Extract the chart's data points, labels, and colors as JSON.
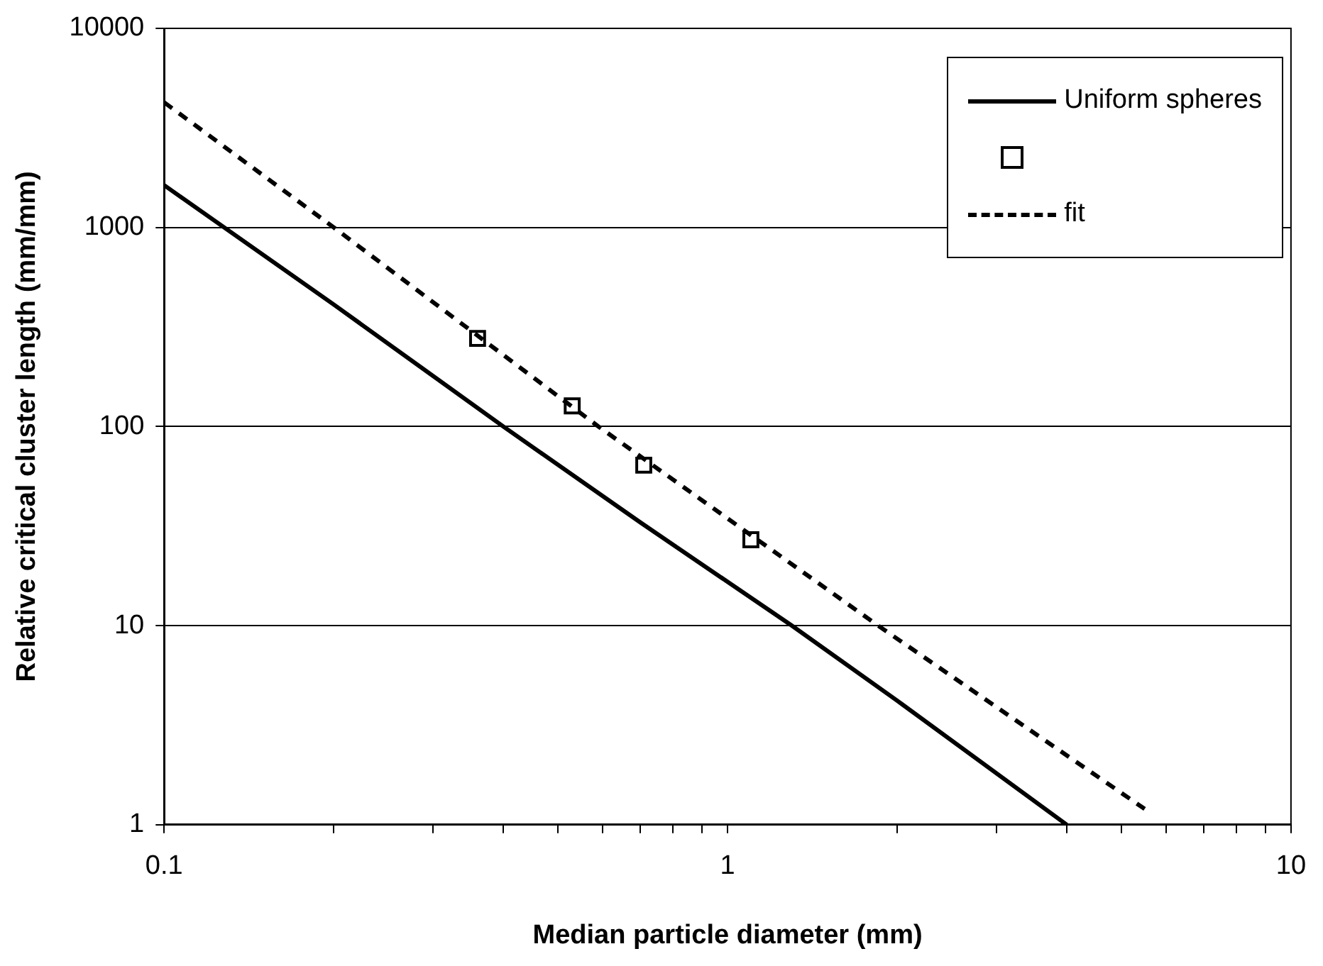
{
  "chart_data": {
    "type": "line",
    "xlabel": "Median particle diameter (mm)",
    "ylabel": "Relative critical cluster length (mm/mm)",
    "log": "xy",
    "grid": "y",
    "legend": "top right",
    "xlim": [
      0.1,
      10
    ],
    "ylim": [
      1,
      10000
    ],
    "xticks": [
      0.1,
      {
        "value": 0.2,
        "label": null
      },
      {
        "value": 0.3,
        "label": null
      },
      {
        "value": 0.4,
        "label": null
      },
      {
        "value": 0.5,
        "label": null
      },
      {
        "value": 0.6,
        "label": null
      },
      {
        "value": 0.7,
        "label": null
      },
      {
        "value": 0.8,
        "label": null
      },
      {
        "value": 0.9,
        "label": null
      },
      1,
      {
        "value": 2,
        "label": null
      },
      {
        "value": 3,
        "label": null
      },
      {
        "value": 4,
        "label": null
      },
      {
        "value": 5,
        "label": null
      },
      {
        "value": 6,
        "label": null
      },
      {
        "value": 7,
        "label": null
      },
      {
        "value": 8,
        "label": null
      },
      {
        "value": 9,
        "label": null
      },
      10
    ],
    "yticks": [
      1,
      10,
      100,
      1000,
      10000
    ],
    "series": [
      {
        "name": "Uniform spheres",
        "type": "line",
        "color": "#000000",
        "line_style": "solid",
        "marker": "none",
        "x": [
          0.1,
          0.2,
          0.4,
          0.7,
          1.3,
          2,
          4
        ],
        "values": [
          1630,
          410,
          100,
          33,
          10,
          4.2,
          1
        ]
      },
      {
        "type": "scatter",
        "color": "#000000",
        "marker": "square",
        "x": [
          0.36,
          0.53,
          0.71,
          1.1
        ],
        "values": [
          277,
          127,
          64,
          27
        ]
      },
      {
        "name": "fit",
        "type": "line",
        "color": "#000000",
        "line_style": "dashed",
        "marker": "none",
        "x": [
          0.1,
          0.2,
          0.59,
          1.85,
          5.5
        ],
        "values": [
          4250,
          1000,
          100,
          10,
          1.2
        ]
      }
    ]
  }
}
